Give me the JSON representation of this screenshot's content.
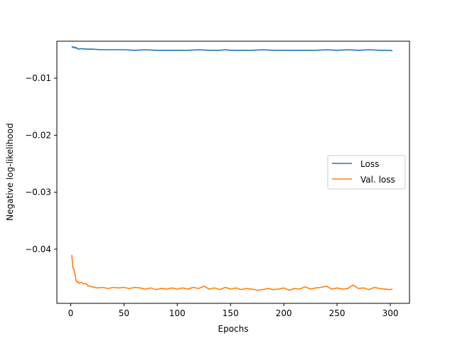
{
  "chart_data": {
    "type": "line",
    "xlabel": "Epochs",
    "ylabel": "Negative log-likelihood",
    "xlim": [
      -13,
      318
    ],
    "ylim": [
      -0.0495,
      -0.0035
    ],
    "xticks": [
      0,
      50,
      100,
      150,
      200,
      250,
      300
    ],
    "yticks": [
      -0.01,
      -0.02,
      -0.03,
      -0.04
    ],
    "xtick_labels": [
      "0",
      "50",
      "100",
      "150",
      "200",
      "250",
      "300"
    ],
    "ytick_labels": [
      "−0.01",
      "−0.02",
      "−0.03",
      "−0.04"
    ],
    "grid": false,
    "legend_position": "center-right",
    "series": [
      {
        "name": "Loss",
        "color": "#1f77b4",
        "x": [
          1,
          2,
          3,
          4,
          5,
          6,
          8,
          10,
          15,
          20,
          30,
          40,
          50,
          60,
          70,
          80,
          90,
          100,
          110,
          120,
          130,
          140,
          145,
          150,
          160,
          170,
          180,
          190,
          200,
          210,
          220,
          230,
          240,
          250,
          260,
          270,
          280,
          290,
          300,
          302
        ],
        "y": [
          -0.0044,
          -0.0046,
          -0.0045,
          -0.0047,
          -0.0046,
          -0.0048,
          -0.0049,
          -0.0048,
          -0.0049,
          -0.0049,
          -0.005,
          -0.005,
          -0.005,
          -0.0051,
          -0.005,
          -0.0051,
          -0.0051,
          -0.0051,
          -0.0051,
          -0.005,
          -0.0051,
          -0.0051,
          -0.005,
          -0.0051,
          -0.0051,
          -0.0051,
          -0.005,
          -0.0051,
          -0.0051,
          -0.0051,
          -0.0051,
          -0.0051,
          -0.005,
          -0.0051,
          -0.005,
          -0.0051,
          -0.005,
          -0.0051,
          -0.0051,
          -0.0052
        ]
      },
      {
        "name": "Val. loss",
        "color": "#ff7f0e",
        "x": [
          1,
          2,
          3,
          4,
          5,
          6,
          7,
          8,
          10,
          12,
          14,
          16,
          18,
          20,
          25,
          30,
          35,
          40,
          45,
          50,
          55,
          60,
          65,
          70,
          75,
          80,
          85,
          90,
          95,
          100,
          105,
          110,
          115,
          120,
          125,
          130,
          135,
          140,
          145,
          150,
          155,
          160,
          165,
          170,
          175,
          180,
          185,
          190,
          195,
          200,
          205,
          210,
          215,
          220,
          225,
          230,
          235,
          240,
          245,
          250,
          255,
          260,
          265,
          270,
          275,
          280,
          285,
          290,
          295,
          300,
          302
        ],
        "y": [
          -0.041,
          -0.0432,
          -0.0435,
          -0.0445,
          -0.0455,
          -0.0458,
          -0.0457,
          -0.046,
          -0.0458,
          -0.0461,
          -0.046,
          -0.0464,
          -0.0465,
          -0.0466,
          -0.0468,
          -0.0467,
          -0.0469,
          -0.0467,
          -0.0468,
          -0.0467,
          -0.0469,
          -0.0467,
          -0.0468,
          -0.047,
          -0.0468,
          -0.0471,
          -0.0469,
          -0.047,
          -0.0468,
          -0.047,
          -0.0468,
          -0.047,
          -0.0467,
          -0.0469,
          -0.0465,
          -0.047,
          -0.0468,
          -0.0471,
          -0.0467,
          -0.047,
          -0.0468,
          -0.0471,
          -0.0469,
          -0.047,
          -0.0472,
          -0.0471,
          -0.0469,
          -0.0471,
          -0.047,
          -0.0468,
          -0.0472,
          -0.0469,
          -0.047,
          -0.0466,
          -0.047,
          -0.0468,
          -0.0467,
          -0.0465,
          -0.047,
          -0.0468,
          -0.047,
          -0.0469,
          -0.0463,
          -0.0469,
          -0.0468,
          -0.0471,
          -0.0467,
          -0.0469,
          -0.047,
          -0.0471,
          -0.047
        ]
      }
    ]
  }
}
